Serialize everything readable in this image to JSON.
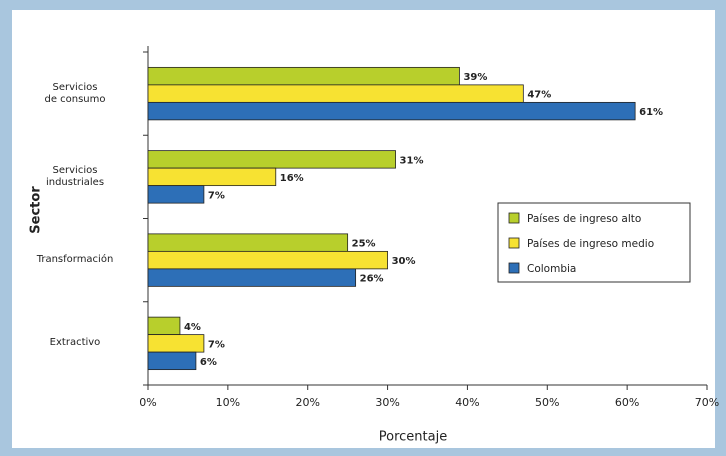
{
  "chart_data": {
    "type": "bar",
    "orientation": "horizontal",
    "categories": [
      "Servicios\nde consumo",
      "Servicios\nindustriales",
      "Transformación",
      "Extractivo"
    ],
    "series": [
      {
        "name": "Países de ingreso alto",
        "color": "#b8cf2c",
        "values": [
          39,
          31,
          25,
          4
        ],
        "value_labels": [
          "39%",
          "31%",
          "25%",
          "4%"
        ]
      },
      {
        "name": "Países de ingreso medio",
        "color": "#f7e232",
        "values": [
          47,
          16,
          30,
          7
        ],
        "value_labels": [
          "47%",
          "16%",
          "30%",
          "7%"
        ]
      },
      {
        "name": "Colombia",
        "color": "#2d6fb7",
        "values": [
          61,
          7,
          26,
          6
        ],
        "value_labels": [
          "61%",
          "7%",
          "26%",
          "6%"
        ]
      }
    ],
    "xlim": [
      0,
      70
    ],
    "xticks": [
      {
        "value": 0,
        "label": "0%"
      },
      {
        "value": 10,
        "label": "10%"
      },
      {
        "value": 20,
        "label": "20%"
      },
      {
        "value": 30,
        "label": "30%"
      },
      {
        "value": 40,
        "label": "40%"
      },
      {
        "value": 50,
        "label": "50%"
      },
      {
        "value": 60,
        "label": "60%"
      },
      {
        "value": 70,
        "label": "70%"
      }
    ],
    "xlabel": "Porcentaje",
    "ylabel": "Sector",
    "legend": "right",
    "grid": false
  }
}
